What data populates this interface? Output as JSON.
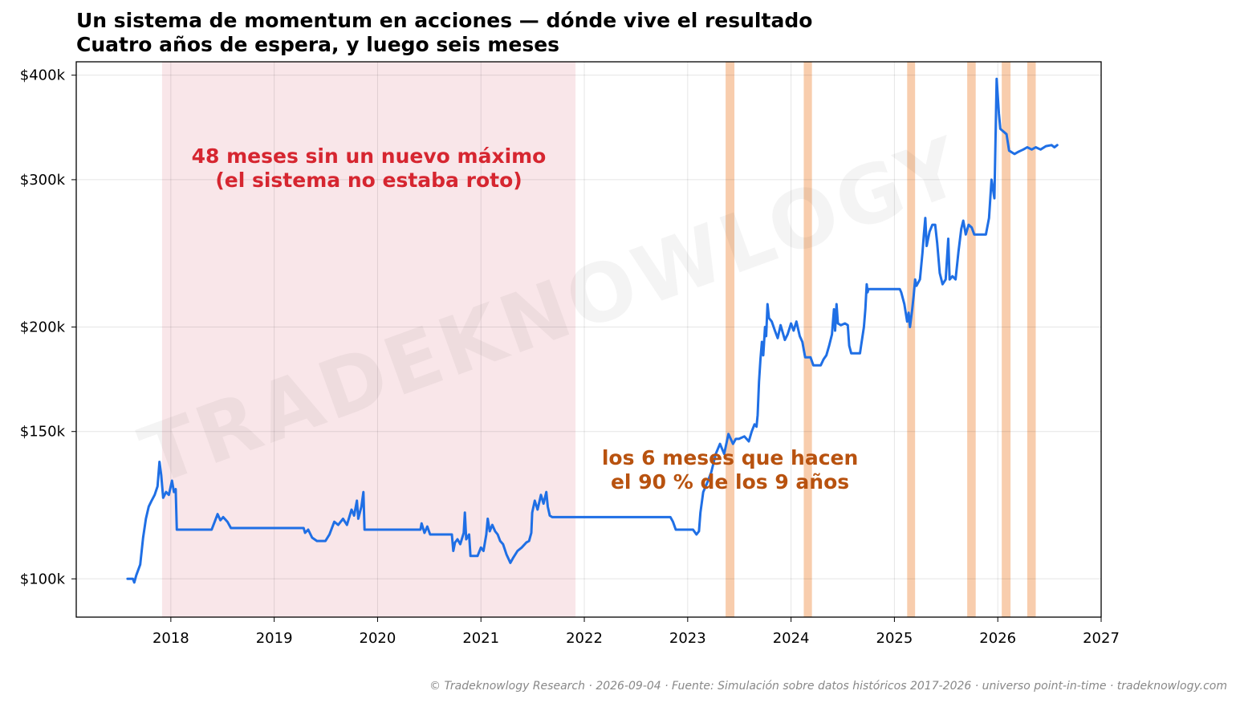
{
  "chart_data": {
    "type": "line",
    "title": "Un sistema de momentum en acciones — dónde vive el resultado",
    "subtitle": "Cuatro años de espera, y luego seis meses",
    "xlabel": "",
    "ylabel": "",
    "x_ticks": [
      "2018",
      "2019",
      "2020",
      "2021",
      "2022",
      "2023",
      "2024",
      "2025",
      "2026",
      "2027"
    ],
    "y_ticks": [
      "$100k",
      "$150k",
      "$200k",
      "$300k",
      "$400k"
    ],
    "y_tick_values": [
      100000,
      150000,
      200000,
      300000,
      400000
    ],
    "y_scale": "log",
    "xlim": [
      "2017-02-01",
      "2027-01-01"
    ],
    "ylim": [
      90000,
      415000
    ],
    "grid": true,
    "legend": "none",
    "line_color": "#1f6fe5",
    "drawdown_shade": {
      "start": "2017-12-01",
      "end": "2021-12-01",
      "color": "#f9e6e9"
    },
    "highlight_bands_color": "#f5b88a",
    "highlight_bands": [
      [
        "2023-05-15",
        "2023-06-15"
      ],
      [
        "2024-02-15",
        "2024-03-15"
      ],
      [
        "2025-02-15",
        "2025-03-15"
      ],
      [
        "2025-09-15",
        "2025-10-15"
      ],
      [
        "2026-01-15",
        "2026-02-15"
      ],
      [
        "2026-04-15",
        "2026-05-15"
      ]
    ],
    "series": [
      {
        "points": [
          [
            "2017-08-01",
            100000
          ],
          [
            "2017-08-20",
            100000
          ],
          [
            "2017-08-25",
            99000
          ],
          [
            "2017-09-01",
            101000
          ],
          [
            "2017-09-15",
            104000
          ],
          [
            "2017-09-25",
            112000
          ],
          [
            "2017-10-05",
            118000
          ],
          [
            "2017-10-15",
            122000
          ],
          [
            "2017-10-25",
            124000
          ],
          [
            "2017-11-05",
            126000
          ],
          [
            "2017-11-15",
            129000
          ],
          [
            "2017-11-22",
            138000
          ],
          [
            "2017-11-28",
            133000
          ],
          [
            "2017-12-05",
            125000
          ],
          [
            "2017-12-15",
            127000
          ],
          [
            "2017-12-25",
            126000
          ],
          [
            "2018-01-05",
            131000
          ],
          [
            "2018-01-12",
            127000
          ],
          [
            "2018-01-18",
            128000
          ],
          [
            "2018-01-22",
            114500
          ],
          [
            "2018-05-20",
            114500
          ],
          [
            "2018-05-25",
            114500
          ],
          [
            "2018-06-05",
            117000
          ],
          [
            "2018-06-15",
            119500
          ],
          [
            "2018-06-25",
            117500
          ],
          [
            "2018-07-05",
            118500
          ],
          [
            "2018-07-20",
            117000
          ],
          [
            "2018-08-01",
            115000
          ],
          [
            "2019-04-15",
            115000
          ],
          [
            "2019-04-20",
            113500
          ],
          [
            "2019-05-01",
            114500
          ],
          [
            "2019-05-15",
            112000
          ],
          [
            "2019-06-01",
            111000
          ],
          [
            "2019-07-01",
            111000
          ],
          [
            "2019-07-15",
            113000
          ],
          [
            "2019-08-01",
            117000
          ],
          [
            "2019-08-15",
            116000
          ],
          [
            "2019-09-01",
            118000
          ],
          [
            "2019-09-15",
            116000
          ],
          [
            "2019-10-01",
            121000
          ],
          [
            "2019-10-10",
            119000
          ],
          [
            "2019-10-20",
            124000
          ],
          [
            "2019-10-25",
            118000
          ],
          [
            "2019-11-05",
            122000
          ],
          [
            "2019-11-12",
            127000
          ],
          [
            "2019-11-16",
            114500
          ],
          [
            "2020-06-01",
            114500
          ],
          [
            "2020-06-05",
            116500
          ],
          [
            "2020-06-15",
            113500
          ],
          [
            "2020-06-25",
            115500
          ],
          [
            "2020-07-05",
            113000
          ],
          [
            "2020-09-20",
            113000
          ],
          [
            "2020-09-25",
            108000
          ],
          [
            "2020-10-01",
            110500
          ],
          [
            "2020-10-10",
            111500
          ],
          [
            "2020-10-20",
            110000
          ],
          [
            "2020-11-01",
            113500
          ],
          [
            "2020-11-05",
            120000
          ],
          [
            "2020-11-10",
            111500
          ],
          [
            "2020-11-20",
            113000
          ],
          [
            "2020-11-25",
            106500
          ],
          [
            "2020-12-20",
            106500
          ],
          [
            "2021-01-01",
            109000
          ],
          [
            "2021-01-10",
            108000
          ],
          [
            "2021-01-20",
            113000
          ],
          [
            "2021-01-25",
            118000
          ],
          [
            "2021-02-01",
            114000
          ],
          [
            "2021-02-10",
            116000
          ],
          [
            "2021-02-20",
            114000
          ],
          [
            "2021-03-01",
            113000
          ],
          [
            "2021-03-10",
            111000
          ],
          [
            "2021-03-20",
            110000
          ],
          [
            "2021-04-01",
            107000
          ],
          [
            "2021-04-15",
            104500
          ],
          [
            "2021-04-25",
            106000
          ],
          [
            "2021-05-10",
            108000
          ],
          [
            "2021-05-25",
            109000
          ],
          [
            "2021-06-10",
            110500
          ],
          [
            "2021-06-20",
            111000
          ],
          [
            "2021-06-28",
            113500
          ],
          [
            "2021-07-01",
            120000
          ],
          [
            "2021-07-10",
            124000
          ],
          [
            "2021-07-20",
            121000
          ],
          [
            "2021-08-01",
            126000
          ],
          [
            "2021-08-10",
            123000
          ],
          [
            "2021-08-20",
            127000
          ],
          [
            "2021-08-25",
            122000
          ],
          [
            "2021-09-01",
            119000
          ],
          [
            "2021-09-10",
            118500
          ],
          [
            "2022-11-01",
            118500
          ],
          [
            "2022-11-10",
            117000
          ],
          [
            "2022-11-20",
            114500
          ],
          [
            "2023-01-20",
            114500
          ],
          [
            "2023-02-01",
            113000
          ],
          [
            "2023-02-10",
            114000
          ],
          [
            "2023-02-15",
            120000
          ],
          [
            "2023-02-25",
            127000
          ],
          [
            "2023-03-10",
            130000
          ],
          [
            "2023-03-25",
            134000
          ],
          [
            "2023-04-10",
            141000
          ],
          [
            "2023-04-25",
            145000
          ],
          [
            "2023-05-10",
            141000
          ],
          [
            "2023-05-25",
            149000
          ],
          [
            "2023-06-10",
            145000
          ],
          [
            "2023-06-20",
            147000
          ],
          [
            "2023-07-01",
            147000
          ],
          [
            "2023-07-20",
            148000
          ],
          [
            "2023-08-05",
            146000
          ],
          [
            "2023-08-15",
            150000
          ],
          [
            "2023-08-25",
            153000
          ],
          [
            "2023-09-01",
            152000
          ],
          [
            "2023-09-05",
            157000
          ],
          [
            "2023-09-10",
            172000
          ],
          [
            "2023-09-15",
            183000
          ],
          [
            "2023-09-20",
            192000
          ],
          [
            "2023-09-25",
            185000
          ],
          [
            "2023-10-01",
            200000
          ],
          [
            "2023-10-05",
            195000
          ],
          [
            "2023-10-10",
            213000
          ],
          [
            "2023-10-15",
            205000
          ],
          [
            "2023-10-25",
            203000
          ],
          [
            "2023-11-05",
            198000
          ],
          [
            "2023-11-15",
            194000
          ],
          [
            "2023-11-25",
            201000
          ],
          [
            "2023-12-10",
            193000
          ],
          [
            "2023-12-20",
            196000
          ],
          [
            "2024-01-01",
            202000
          ],
          [
            "2024-01-10",
            198000
          ],
          [
            "2024-01-20",
            203000
          ],
          [
            "2024-02-01",
            195000
          ],
          [
            "2024-02-10",
            192000
          ],
          [
            "2024-02-20",
            184000
          ],
          [
            "2024-03-10",
            184000
          ],
          [
            "2024-03-20",
            180000
          ],
          [
            "2024-04-15",
            180000
          ],
          [
            "2024-04-25",
            183000
          ],
          [
            "2024-05-05",
            185000
          ],
          [
            "2024-05-15",
            190000
          ],
          [
            "2024-05-25",
            196000
          ],
          [
            "2024-06-01",
            210000
          ],
          [
            "2024-06-05",
            198000
          ],
          [
            "2024-06-10",
            213000
          ],
          [
            "2024-06-15",
            202000
          ],
          [
            "2024-06-25",
            201000
          ],
          [
            "2024-07-10",
            202000
          ],
          [
            "2024-07-20",
            201000
          ],
          [
            "2024-07-25",
            190000
          ],
          [
            "2024-08-01",
            186000
          ],
          [
            "2024-09-01",
            186000
          ],
          [
            "2024-09-05",
            190000
          ],
          [
            "2024-09-15",
            200000
          ],
          [
            "2024-09-20",
            210000
          ],
          [
            "2024-09-25",
            225000
          ],
          [
            "2024-09-28",
            220000
          ],
          [
            "2024-10-01",
            222000
          ],
          [
            "2025-01-20",
            222000
          ],
          [
            "2025-01-25",
            220000
          ],
          [
            "2025-02-05",
            213000
          ],
          [
            "2025-02-10",
            208000
          ],
          [
            "2025-02-15",
            203000
          ],
          [
            "2025-02-20",
            208000
          ],
          [
            "2025-02-25",
            200000
          ],
          [
            "2025-03-05",
            210000
          ],
          [
            "2025-03-10",
            218000
          ],
          [
            "2025-03-15",
            228000
          ],
          [
            "2025-03-20",
            224000
          ],
          [
            "2025-04-01",
            228000
          ],
          [
            "2025-04-10",
            245000
          ],
          [
            "2025-04-15",
            258000
          ],
          [
            "2025-04-20",
            270000
          ],
          [
            "2025-04-25",
            250000
          ],
          [
            "2025-05-05",
            260000
          ],
          [
            "2025-05-15",
            265000
          ],
          [
            "2025-05-25",
            265000
          ],
          [
            "2025-06-01",
            252000
          ],
          [
            "2025-06-10",
            232000
          ],
          [
            "2025-06-20",
            225000
          ],
          [
            "2025-07-01",
            228000
          ],
          [
            "2025-07-10",
            255000
          ],
          [
            "2025-07-15",
            228000
          ],
          [
            "2025-07-25",
            230000
          ],
          [
            "2025-08-05",
            228000
          ],
          [
            "2025-08-15",
            246000
          ],
          [
            "2025-08-25",
            262000
          ],
          [
            "2025-09-01",
            268000
          ],
          [
            "2025-09-10",
            258000
          ],
          [
            "2025-09-20",
            265000
          ],
          [
            "2025-10-01",
            263000
          ],
          [
            "2025-10-10",
            258000
          ],
          [
            "2025-11-20",
            258000
          ],
          [
            "2025-12-01",
            270000
          ],
          [
            "2025-12-10",
            300000
          ],
          [
            "2025-12-20",
            285000
          ],
          [
            "2025-12-28",
            396000
          ],
          [
            "2026-01-05",
            360000
          ],
          [
            "2026-01-10",
            345000
          ],
          [
            "2026-02-01",
            340000
          ],
          [
            "2026-02-10",
            325000
          ],
          [
            "2026-03-01",
            322000
          ],
          [
            "2026-03-15",
            324000
          ],
          [
            "2026-04-01",
            326000
          ],
          [
            "2026-04-15",
            328000
          ],
          [
            "2026-05-01",
            326000
          ],
          [
            "2026-05-15",
            328000
          ],
          [
            "2026-06-01",
            326000
          ],
          [
            "2026-06-20",
            329000
          ],
          [
            "2026-07-10",
            330000
          ],
          [
            "2026-07-20",
            328000
          ],
          [
            "2026-07-30",
            330000
          ]
        ]
      }
    ],
    "annotations": [
      {
        "lines": [
          "48 meses sin un nuevo máximo",
          "(el sistema no estaba roto)"
        ],
        "color": "#d62630"
      },
      {
        "lines": [
          "los 6 meses que hacen",
          "el 90 % de los 9 años"
        ],
        "color": "#b8520f"
      }
    ]
  },
  "watermark": "TRADEKNOWLOGY",
  "footer": "© Tradeknowlogy Research   ·   2026-09-04   ·   Fuente: Simulación sobre datos históricos 2017-2026 · universo point-in-time   ·   tradeknowlogy.com"
}
